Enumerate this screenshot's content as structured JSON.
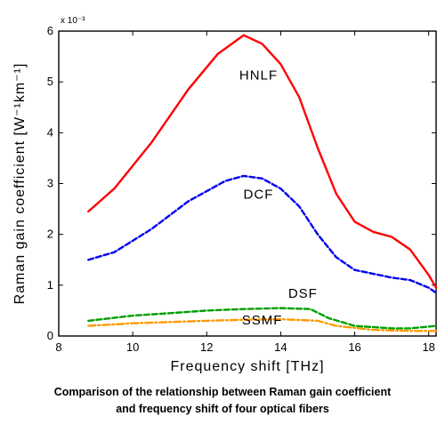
{
  "chart_data": {
    "type": "line",
    "xlabel": "Frequency shift [THz]",
    "ylabel": "Raman gain coefficient [W⁻¹km⁻¹]",
    "y_multiplier": "x 10⁻³",
    "xlim": [
      8,
      18.2
    ],
    "ylim": [
      0,
      6
    ],
    "xticks": [
      8,
      10,
      12,
      14,
      16,
      18
    ],
    "yticks": [
      0,
      1,
      2,
      3,
      4,
      5,
      6
    ],
    "grid": false,
    "series": [
      {
        "name": "HNLF",
        "color": "#ff0000",
        "style": "solid",
        "points": [
          [
            8.8,
            2.45
          ],
          [
            9.5,
            2.9
          ],
          [
            10.5,
            3.8
          ],
          [
            11.5,
            4.85
          ],
          [
            12.3,
            5.55
          ],
          [
            13.0,
            5.92
          ],
          [
            13.5,
            5.75
          ],
          [
            14.0,
            5.35
          ],
          [
            14.5,
            4.7
          ],
          [
            15.0,
            3.7
          ],
          [
            15.5,
            2.8
          ],
          [
            16.0,
            2.25
          ],
          [
            16.5,
            2.05
          ],
          [
            17.0,
            1.95
          ],
          [
            17.5,
            1.7
          ],
          [
            18.0,
            1.2
          ],
          [
            18.2,
            0.95
          ]
        ]
      },
      {
        "name": "DCF",
        "color": "#0000ee",
        "style": "dashed",
        "points": [
          [
            8.8,
            1.5
          ],
          [
            9.5,
            1.65
          ],
          [
            10.5,
            2.1
          ],
          [
            11.5,
            2.65
          ],
          [
            12.5,
            3.05
          ],
          [
            13.0,
            3.15
          ],
          [
            13.5,
            3.1
          ],
          [
            14.0,
            2.9
          ],
          [
            14.5,
            2.55
          ],
          [
            15.0,
            2.0
          ],
          [
            15.5,
            1.55
          ],
          [
            16.0,
            1.3
          ],
          [
            17.0,
            1.15
          ],
          [
            17.5,
            1.1
          ],
          [
            18.0,
            0.95
          ],
          [
            18.2,
            0.85
          ]
        ]
      },
      {
        "name": "DSF",
        "color": "#00a000",
        "style": "dashed",
        "points": [
          [
            8.8,
            0.3
          ],
          [
            10.0,
            0.4
          ],
          [
            11.0,
            0.45
          ],
          [
            12.0,
            0.5
          ],
          [
            13.0,
            0.53
          ],
          [
            14.0,
            0.55
          ],
          [
            14.8,
            0.53
          ],
          [
            15.3,
            0.35
          ],
          [
            16.0,
            0.2
          ],
          [
            17.0,
            0.15
          ],
          [
            17.5,
            0.15
          ],
          [
            18.2,
            0.2
          ]
        ]
      },
      {
        "name": "SSMF",
        "color": "#ff9900",
        "style": "dashdot",
        "points": [
          [
            8.8,
            0.2
          ],
          [
            10.0,
            0.25
          ],
          [
            12.0,
            0.3
          ],
          [
            13.0,
            0.32
          ],
          [
            14.0,
            0.33
          ],
          [
            15.0,
            0.3
          ],
          [
            15.5,
            0.2
          ],
          [
            16.5,
            0.12
          ],
          [
            17.5,
            0.1
          ],
          [
            18.2,
            0.1
          ]
        ]
      }
    ],
    "annotations": [
      {
        "text": "HNLF",
        "x": 13.4,
        "y": 5.05
      },
      {
        "text": "DCF",
        "x": 13.4,
        "y": 2.7
      },
      {
        "text": "DSF",
        "x": 14.6,
        "y": 0.75
      },
      {
        "text": "SSMF",
        "x": 13.5,
        "y": 0.23
      }
    ]
  },
  "caption": {
    "line1": "Comparison of the relationship between Raman gain coefficient",
    "line2": "and frequency shift of four optical fibers"
  }
}
